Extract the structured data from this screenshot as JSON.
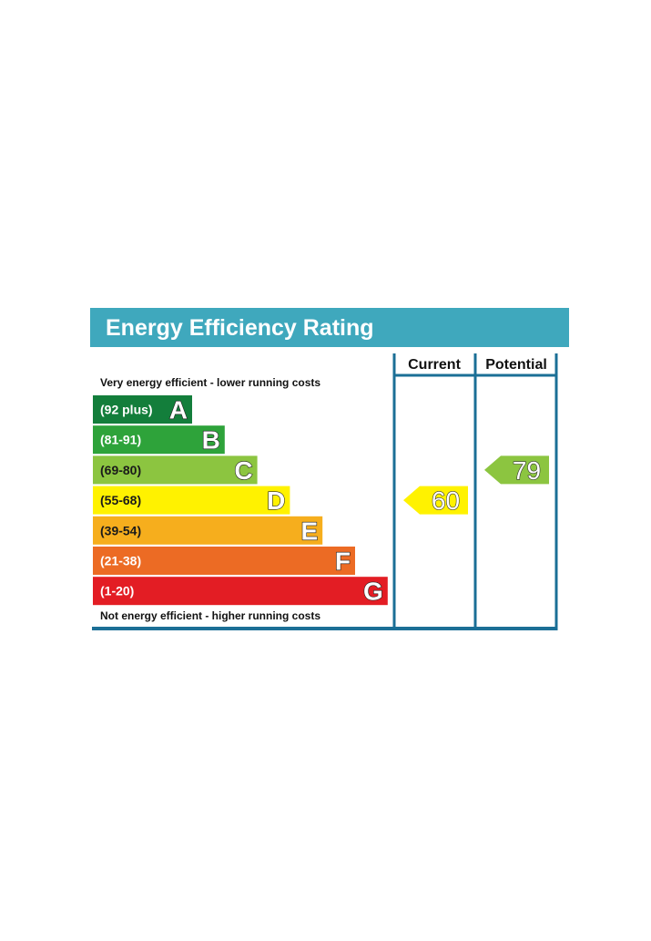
{
  "chart_data": {
    "type": "bar",
    "title": "Energy Efficiency Rating",
    "columns": [
      "Current",
      "Potential"
    ],
    "top_caption": "Very energy efficient - lower running costs",
    "bottom_caption": "Not energy efficient - higher running costs",
    "bands": [
      {
        "letter": "A",
        "range": "(92 plus)",
        "min": 92,
        "max": 100,
        "color": "#008054"
      },
      {
        "letter": "B",
        "range": "(81-91)",
        "min": 81,
        "max": 91,
        "color": "#19b459"
      },
      {
        "letter": "C",
        "range": "(69-80)",
        "min": 69,
        "max": 80,
        "color": "#8dce46"
      },
      {
        "letter": "D",
        "range": "(55-68)",
        "min": 55,
        "max": 68,
        "color": "#ffd500"
      },
      {
        "letter": "E",
        "range": "(39-54)",
        "min": 39,
        "max": 54,
        "color": "#fcaa65"
      },
      {
        "letter": "F",
        "range": "(21-38)",
        "min": 21,
        "max": 38,
        "color": "#ef8023"
      },
      {
        "letter": "G",
        "range": "(1-20)",
        "min": 1,
        "max": 20,
        "color": "#e9153b"
      }
    ],
    "current": {
      "value": 60,
      "label": "60",
      "band": "D"
    },
    "potential": {
      "value": 79,
      "label": "79",
      "band": "C"
    }
  },
  "colors": {
    "header_bg": "#3fa8bd",
    "frame": "#1b6f96",
    "band_A": "#137e3b",
    "band_B": "#2ea33a",
    "band_C": "#8cc540",
    "band_D": "#fff200",
    "band_E": "#f6ae1d",
    "band_F": "#ec6b24",
    "band_G": "#e31d24",
    "current_arrow": "#fff200",
    "potential_arrow": "#8cc540"
  }
}
